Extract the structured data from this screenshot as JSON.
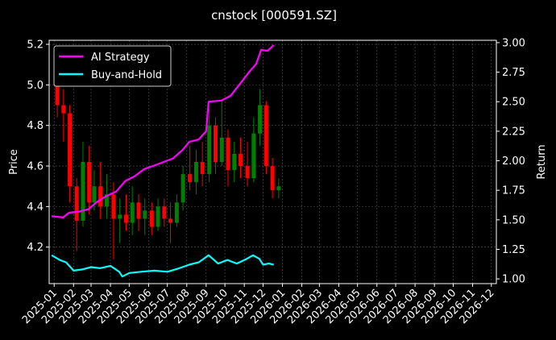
{
  "chart_data": {
    "type": "candlestick+line",
    "title": "cnstock [000591.SZ]",
    "ylabel_left": "Price",
    "ylabel_right": "Return",
    "ylim_left": [
      4.02,
      5.22
    ],
    "ylim_right": [
      0.96,
      3.02
    ],
    "yticks_left": [
      "4.2",
      "4.4",
      "4.6",
      "4.8",
      "5.0",
      "5.2"
    ],
    "yticks_right": [
      "1.00",
      "1.25",
      "1.50",
      "1.75",
      "2.00",
      "2.25",
      "2.50",
      "2.75",
      "3.00"
    ],
    "xticks": [
      "2025-01",
      "2025-02",
      "2025-03",
      "2025-04",
      "2025-05",
      "2025-06",
      "2025-07",
      "2025-08",
      "2025-09",
      "2025-10",
      "2025-11",
      "2025-12",
      "2026-01",
      "2026-02",
      "2026-03",
      "2026-04",
      "2026-05",
      "2026-06",
      "2026-07",
      "2026-08",
      "2026-09",
      "2026-10",
      "2026-11",
      "2026-12"
    ],
    "xlim": [
      "2024-12-24",
      "2026-12-09"
    ],
    "grid": true,
    "legend_position": "top-left",
    "colors": {
      "background": "#000000",
      "up": "#008000",
      "down": "#ff0000",
      "ai": "#ff00ff",
      "bh": "#00ffff",
      "grid": "#555555"
    },
    "candles": [
      {
        "month": "2025-01",
        "open": 5.06,
        "high": 5.16,
        "low": 4.84,
        "close": 4.9
      },
      {
        "month": "2025-01",
        "open": 4.9,
        "high": 4.98,
        "low": 4.72,
        "close": 4.86
      },
      {
        "month": "2025-01",
        "open": 4.86,
        "high": 4.9,
        "low": 4.42,
        "close": 4.5
      },
      {
        "month": "2025-02",
        "open": 4.5,
        "high": 4.54,
        "low": 4.18,
        "close": 4.33
      },
      {
        "month": "2025-02",
        "open": 4.33,
        "high": 4.72,
        "low": 4.3,
        "close": 4.62
      },
      {
        "month": "2025-02",
        "open": 4.62,
        "high": 4.7,
        "low": 4.36,
        "close": 4.42
      },
      {
        "month": "2025-03",
        "open": 4.42,
        "high": 4.58,
        "low": 4.38,
        "close": 4.5
      },
      {
        "month": "2025-03",
        "open": 4.5,
        "high": 4.62,
        "low": 4.34,
        "close": 4.4
      },
      {
        "month": "2025-03",
        "open": 4.4,
        "high": 4.56,
        "low": 4.34,
        "close": 4.46
      },
      {
        "month": "2025-04",
        "open": 4.46,
        "high": 4.52,
        "low": 4.14,
        "close": 4.34
      },
      {
        "month": "2025-04",
        "open": 4.34,
        "high": 4.44,
        "low": 4.22,
        "close": 4.36
      },
      {
        "month": "2025-04",
        "open": 4.36,
        "high": 4.46,
        "low": 4.28,
        "close": 4.32
      },
      {
        "month": "2025-05",
        "open": 4.32,
        "high": 4.5,
        "low": 4.26,
        "close": 4.42
      },
      {
        "month": "2025-05",
        "open": 4.42,
        "high": 4.46,
        "low": 4.28,
        "close": 4.34
      },
      {
        "month": "2025-05",
        "open": 4.34,
        "high": 4.44,
        "low": 4.26,
        "close": 4.38
      },
      {
        "month": "2025-06",
        "open": 4.38,
        "high": 4.42,
        "low": 4.26,
        "close": 4.3
      },
      {
        "month": "2025-06",
        "open": 4.3,
        "high": 4.44,
        "low": 4.28,
        "close": 4.4
      },
      {
        "month": "2025-06",
        "open": 4.4,
        "high": 4.44,
        "low": 4.3,
        "close": 4.34
      },
      {
        "month": "2025-07",
        "open": 4.34,
        "high": 4.42,
        "low": 4.22,
        "close": 4.32
      },
      {
        "month": "2025-07",
        "open": 4.32,
        "high": 4.46,
        "low": 4.3,
        "close": 4.42
      },
      {
        "month": "2025-07",
        "open": 4.42,
        "high": 4.6,
        "low": 4.38,
        "close": 4.56
      },
      {
        "month": "2025-08",
        "open": 4.56,
        "high": 4.7,
        "low": 4.48,
        "close": 4.52
      },
      {
        "month": "2025-08",
        "open": 4.52,
        "high": 4.68,
        "low": 4.46,
        "close": 4.62
      },
      {
        "month": "2025-08",
        "open": 4.62,
        "high": 4.72,
        "low": 4.5,
        "close": 4.56
      },
      {
        "month": "2025-09",
        "open": 4.56,
        "high": 4.88,
        "low": 4.52,
        "close": 4.8
      },
      {
        "month": "2025-09",
        "open": 4.8,
        "high": 4.84,
        "low": 4.56,
        "close": 4.62
      },
      {
        "month": "2025-09",
        "open": 4.62,
        "high": 4.92,
        "low": 4.6,
        "close": 4.74
      },
      {
        "month": "2025-10",
        "open": 4.74,
        "high": 4.78,
        "low": 4.5,
        "close": 4.58
      },
      {
        "month": "2025-10",
        "open": 4.58,
        "high": 4.72,
        "low": 4.52,
        "close": 4.66
      },
      {
        "month": "2025-10",
        "open": 4.66,
        "high": 4.74,
        "low": 4.54,
        "close": 4.6
      },
      {
        "month": "2025-11",
        "open": 4.6,
        "high": 4.72,
        "low": 4.5,
        "close": 4.54
      },
      {
        "month": "2025-11",
        "open": 4.54,
        "high": 4.84,
        "low": 4.52,
        "close": 4.76
      },
      {
        "month": "2025-11",
        "open": 4.76,
        "high": 4.98,
        "low": 4.7,
        "close": 4.9
      },
      {
        "month": "2025-12",
        "open": 4.9,
        "high": 4.92,
        "low": 4.56,
        "close": 4.6
      },
      {
        "month": "2025-12",
        "open": 4.6,
        "high": 4.64,
        "low": 4.44,
        "close": 4.48
      },
      {
        "month": "2025-12",
        "open": 4.48,
        "high": 4.54,
        "low": 4.44,
        "close": 4.5
      }
    ],
    "series": [
      {
        "name": "AI Strategy",
        "color": "#ff00ff",
        "values": [
          {
            "x": "2024-12-28",
            "y": 1.53
          },
          {
            "x": "2025-01-15",
            "y": 1.52
          },
          {
            "x": "2025-01-25",
            "y": 1.56
          },
          {
            "x": "2025-02-10",
            "y": 1.57
          },
          {
            "x": "2025-02-25",
            "y": 1.59
          },
          {
            "x": "2025-03-10",
            "y": 1.65
          },
          {
            "x": "2025-03-25",
            "y": 1.7
          },
          {
            "x": "2025-04-10",
            "y": 1.74
          },
          {
            "x": "2025-04-25",
            "y": 1.83
          },
          {
            "x": "2025-05-10",
            "y": 1.87
          },
          {
            "x": "2025-05-25",
            "y": 1.93
          },
          {
            "x": "2025-06-10",
            "y": 1.96
          },
          {
            "x": "2025-06-25",
            "y": 1.99
          },
          {
            "x": "2025-07-10",
            "y": 2.02
          },
          {
            "x": "2025-07-25",
            "y": 2.09
          },
          {
            "x": "2025-08-05",
            "y": 2.16
          },
          {
            "x": "2025-08-20",
            "y": 2.18
          },
          {
            "x": "2025-09-01",
            "y": 2.25
          },
          {
            "x": "2025-09-05",
            "y": 2.5
          },
          {
            "x": "2025-09-25",
            "y": 2.51
          },
          {
            "x": "2025-10-10",
            "y": 2.55
          },
          {
            "x": "2025-10-25",
            "y": 2.65
          },
          {
            "x": "2025-11-10",
            "y": 2.76
          },
          {
            "x": "2025-11-20",
            "y": 2.82
          },
          {
            "x": "2025-11-28",
            "y": 2.94
          },
          {
            "x": "2025-12-08",
            "y": 2.93
          },
          {
            "x": "2025-12-18",
            "y": 2.98
          }
        ]
      },
      {
        "name": "Buy-and-Hold",
        "color": "#00ffff",
        "values": [
          {
            "x": "2024-12-28",
            "y": 1.2
          },
          {
            "x": "2025-01-10",
            "y": 1.16
          },
          {
            "x": "2025-01-20",
            "y": 1.14
          },
          {
            "x": "2025-02-01",
            "y": 1.07
          },
          {
            "x": "2025-02-15",
            "y": 1.08
          },
          {
            "x": "2025-03-01",
            "y": 1.1
          },
          {
            "x": "2025-03-15",
            "y": 1.09
          },
          {
            "x": "2025-04-01",
            "y": 1.11
          },
          {
            "x": "2025-04-15",
            "y": 1.06
          },
          {
            "x": "2025-04-20",
            "y": 1.02
          },
          {
            "x": "2025-05-01",
            "y": 1.05
          },
          {
            "x": "2025-05-20",
            "y": 1.06
          },
          {
            "x": "2025-06-10",
            "y": 1.07
          },
          {
            "x": "2025-07-01",
            "y": 1.06
          },
          {
            "x": "2025-07-20",
            "y": 1.09
          },
          {
            "x": "2025-08-05",
            "y": 1.12
          },
          {
            "x": "2025-08-20",
            "y": 1.14
          },
          {
            "x": "2025-09-05",
            "y": 1.2
          },
          {
            "x": "2025-09-20",
            "y": 1.13
          },
          {
            "x": "2025-10-05",
            "y": 1.16
          },
          {
            "x": "2025-10-20",
            "y": 1.13
          },
          {
            "x": "2025-11-05",
            "y": 1.17
          },
          {
            "x": "2025-11-15",
            "y": 1.2
          },
          {
            "x": "2025-11-25",
            "y": 1.17
          },
          {
            "x": "2025-12-01",
            "y": 1.12
          },
          {
            "x": "2025-12-10",
            "y": 1.13
          },
          {
            "x": "2025-12-18",
            "y": 1.12
          }
        ]
      }
    ]
  }
}
